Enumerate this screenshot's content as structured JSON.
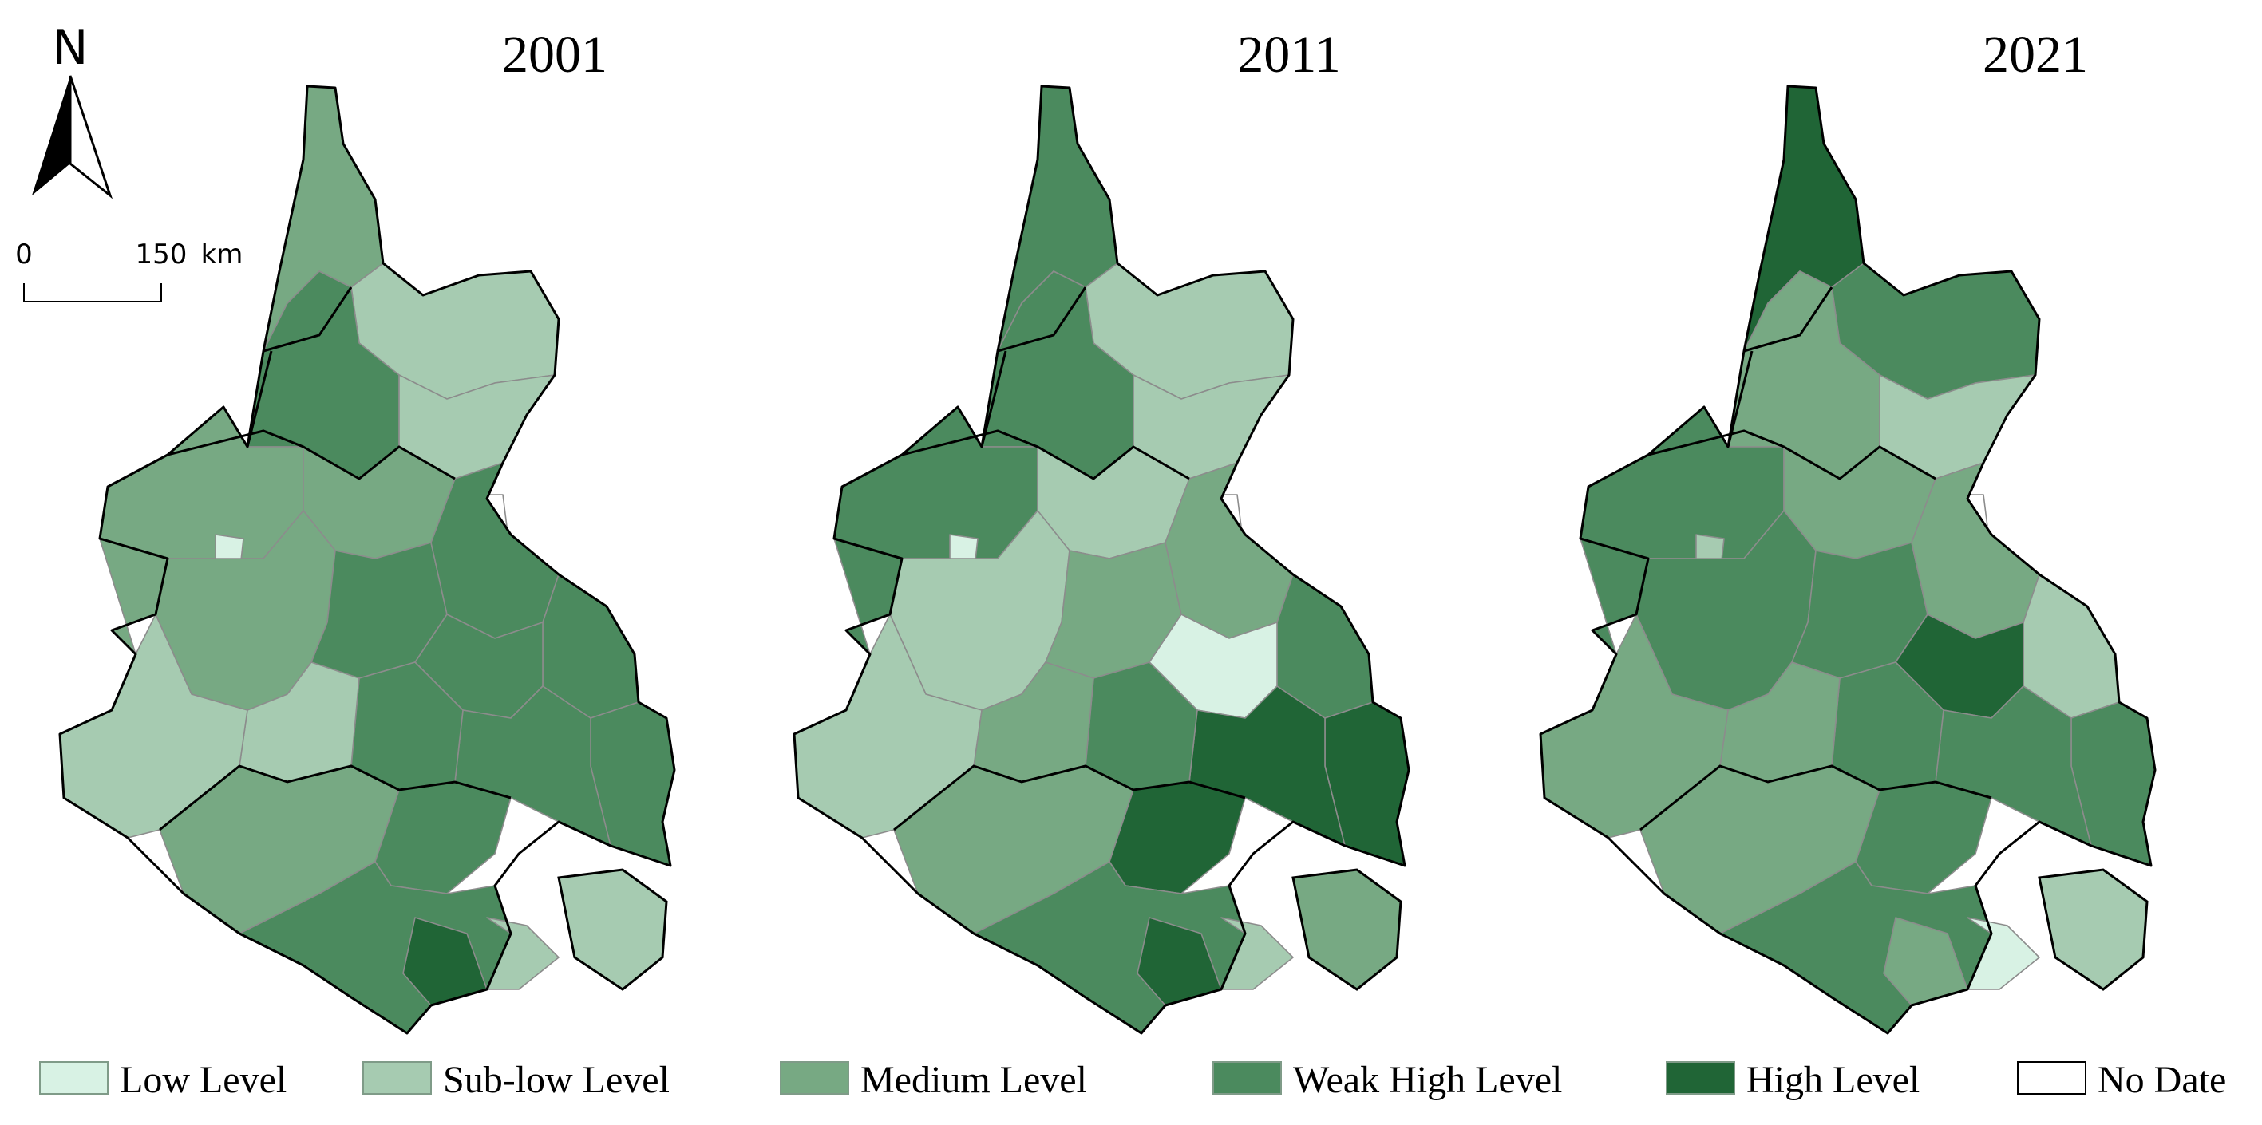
{
  "north_arrow": {
    "letter": "N",
    "icon": "north-arrow-icon"
  },
  "scale_bar": {
    "start": "0",
    "end": "150",
    "unit": "km"
  },
  "maps": [
    {
      "title": "2001"
    },
    {
      "title": "2011"
    },
    {
      "title": "2021"
    }
  ],
  "legend": [
    {
      "label": "Low Level",
      "color": "#d8f2e4"
    },
    {
      "label": "Sub-low Level",
      "color": "#a6cbb1"
    },
    {
      "label": "Medium Level",
      "color": "#77a983"
    },
    {
      "label": "Weak High Level",
      "color": "#4b8a5e"
    },
    {
      "label": "High Level",
      "color": "#206536"
    },
    {
      "label": "No Date",
      "color": "#ffffff"
    }
  ]
}
